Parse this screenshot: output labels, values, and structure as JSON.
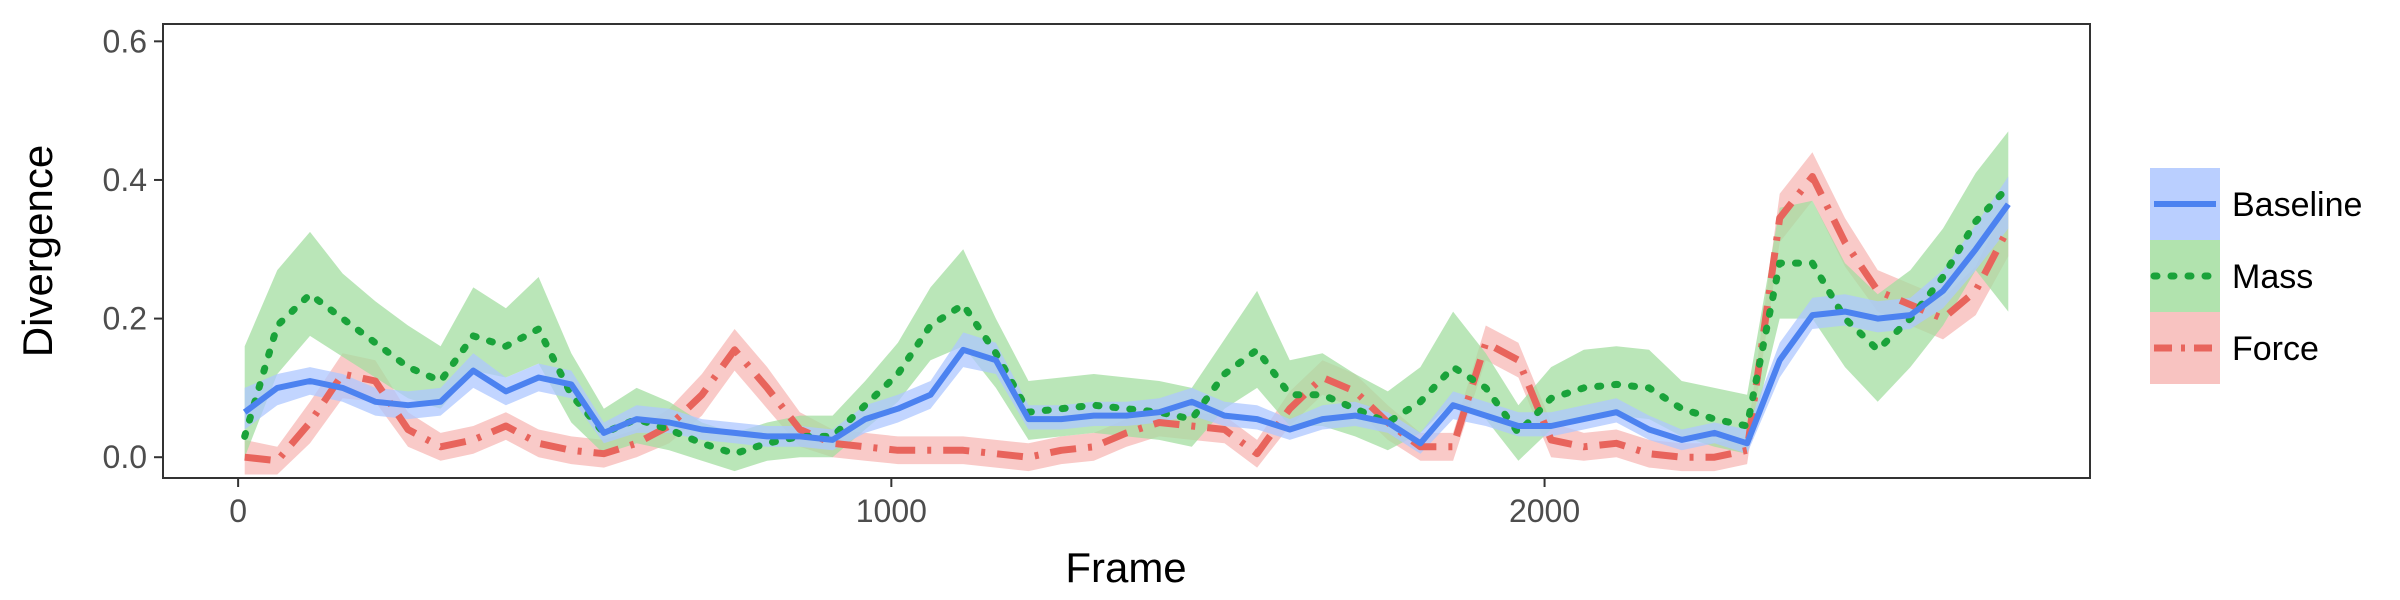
{
  "chart_data": {
    "type": "line",
    "xlabel": "Frame",
    "ylabel": "Divergence",
    "xlim": [
      -115,
      2835
    ],
    "ylim": [
      -0.03,
      0.625
    ],
    "x_ticks": [
      0,
      1000,
      2000
    ],
    "y_ticks": [
      0.0,
      0.2,
      0.4,
      0.6
    ],
    "x_tick_labels": [
      "0",
      "1000",
      "2000"
    ],
    "y_tick_labels": [
      "0.0",
      "0.2",
      "0.4",
      "0.6"
    ],
    "grid": false,
    "legend_position": "right",
    "x": [
      10,
      60,
      110,
      160,
      210,
      260,
      310,
      360,
      410,
      460,
      510,
      560,
      610,
      660,
      710,
      760,
      810,
      860,
      910,
      960,
      1010,
      1060,
      1110,
      1160,
      1210,
      1260,
      1310,
      1360,
      1410,
      1460,
      1510,
      1560,
      1610,
      1660,
      1710,
      1760,
      1810,
      1860,
      1910,
      1960,
      2010,
      2060,
      2110,
      2160,
      2210,
      2260,
      2310,
      2360,
      2410,
      2460,
      2510,
      2560,
      2610,
      2660,
      2710
    ],
    "series": [
      {
        "name": "Baseline",
        "color": "#4c82f0",
        "fill": "#aec7ff",
        "line_style": "solid",
        "values": [
          0.065,
          0.1,
          0.11,
          0.1,
          0.08,
          0.075,
          0.08,
          0.125,
          0.095,
          0.115,
          0.105,
          0.035,
          0.055,
          0.05,
          0.04,
          0.035,
          0.03,
          0.03,
          0.025,
          0.055,
          0.07,
          0.09,
          0.155,
          0.14,
          0.055,
          0.055,
          0.06,
          0.06,
          0.065,
          0.08,
          0.06,
          0.055,
          0.04,
          0.055,
          0.06,
          0.05,
          0.02,
          0.075,
          0.06,
          0.045,
          0.045,
          0.055,
          0.065,
          0.04,
          0.025,
          0.035,
          0.02,
          0.14,
          0.205,
          0.21,
          0.2,
          0.205,
          0.24,
          0.3,
          0.365
        ],
        "lower": [
          0.04,
          0.075,
          0.09,
          0.08,
          0.06,
          0.055,
          0.06,
          0.1,
          0.075,
          0.095,
          0.085,
          0.02,
          0.035,
          0.035,
          0.025,
          0.02,
          0.015,
          0.015,
          0.01,
          0.035,
          0.05,
          0.07,
          0.13,
          0.12,
          0.04,
          0.04,
          0.045,
          0.045,
          0.05,
          0.06,
          0.045,
          0.04,
          0.025,
          0.04,
          0.045,
          0.035,
          0.005,
          0.055,
          0.045,
          0.03,
          0.03,
          0.04,
          0.05,
          0.025,
          0.01,
          0.02,
          0.005,
          0.115,
          0.185,
          0.19,
          0.18,
          0.185,
          0.215,
          0.27,
          0.33
        ],
        "upper": [
          0.1,
          0.12,
          0.13,
          0.12,
          0.1,
          0.095,
          0.1,
          0.15,
          0.115,
          0.135,
          0.125,
          0.05,
          0.075,
          0.07,
          0.055,
          0.05,
          0.045,
          0.045,
          0.04,
          0.075,
          0.09,
          0.11,
          0.18,
          0.165,
          0.075,
          0.075,
          0.08,
          0.08,
          0.085,
          0.1,
          0.08,
          0.075,
          0.055,
          0.075,
          0.08,
          0.065,
          0.035,
          0.095,
          0.08,
          0.065,
          0.065,
          0.075,
          0.085,
          0.06,
          0.04,
          0.05,
          0.04,
          0.165,
          0.23,
          0.235,
          0.225,
          0.23,
          0.27,
          0.335,
          0.405
        ]
      },
      {
        "name": "Mass",
        "color": "#1aa33a",
        "fill": "#a3dea0",
        "line_style": "dotted",
        "values": [
          0.03,
          0.19,
          0.235,
          0.2,
          0.165,
          0.13,
          0.11,
          0.175,
          0.16,
          0.185,
          0.09,
          0.035,
          0.055,
          0.04,
          0.02,
          0.005,
          0.02,
          0.03,
          0.03,
          0.075,
          0.12,
          0.19,
          0.22,
          0.15,
          0.065,
          0.07,
          0.075,
          0.07,
          0.065,
          0.055,
          0.12,
          0.155,
          0.09,
          0.09,
          0.07,
          0.05,
          0.08,
          0.13,
          0.1,
          0.035,
          0.085,
          0.1,
          0.105,
          0.1,
          0.07,
          0.055,
          0.045,
          0.28,
          0.28,
          0.2,
          0.155,
          0.2,
          0.26,
          0.34,
          0.39
        ],
        "lower": [
          0.0,
          0.12,
          0.175,
          0.145,
          0.115,
          0.085,
          0.07,
          0.125,
          0.115,
          0.135,
          0.05,
          0.005,
          0.02,
          0.01,
          -0.005,
          -0.02,
          -0.005,
          0.0,
          0.0,
          0.04,
          0.08,
          0.14,
          0.16,
          0.1,
          0.025,
          0.03,
          0.035,
          0.03,
          0.025,
          0.015,
          0.07,
          0.1,
          0.045,
          0.045,
          0.03,
          0.01,
          0.035,
          0.08,
          0.055,
          -0.005,
          0.04,
          0.055,
          0.06,
          0.055,
          0.03,
          0.015,
          0.005,
          0.2,
          0.2,
          0.13,
          0.08,
          0.13,
          0.19,
          0.27,
          0.21
        ],
        "upper": [
          0.16,
          0.27,
          0.325,
          0.265,
          0.225,
          0.19,
          0.16,
          0.245,
          0.215,
          0.26,
          0.15,
          0.07,
          0.1,
          0.08,
          0.05,
          0.035,
          0.05,
          0.06,
          0.06,
          0.11,
          0.165,
          0.245,
          0.3,
          0.2,
          0.11,
          0.115,
          0.12,
          0.115,
          0.11,
          0.1,
          0.17,
          0.24,
          0.14,
          0.15,
          0.12,
          0.095,
          0.13,
          0.21,
          0.15,
          0.075,
          0.13,
          0.155,
          0.16,
          0.155,
          0.11,
          0.1,
          0.09,
          0.36,
          0.37,
          0.28,
          0.235,
          0.27,
          0.33,
          0.41,
          0.47
        ]
      },
      {
        "name": "Force",
        "color": "#e8645c",
        "fill": "#f7b8b6",
        "line_style": "dashdot",
        "values": [
          0.0,
          -0.005,
          0.05,
          0.12,
          0.11,
          0.04,
          0.015,
          0.025,
          0.045,
          0.02,
          0.01,
          0.005,
          0.02,
          0.045,
          0.09,
          0.155,
          0.1,
          0.04,
          0.02,
          0.015,
          0.01,
          0.01,
          0.01,
          0.005,
          0.0,
          0.01,
          0.015,
          0.035,
          0.05,
          0.045,
          0.04,
          0.005,
          0.07,
          0.115,
          0.095,
          0.05,
          0.015,
          0.015,
          0.165,
          0.14,
          0.025,
          0.015,
          0.02,
          0.005,
          0.0,
          0.0,
          0.01,
          0.345,
          0.405,
          0.31,
          0.24,
          0.22,
          0.2,
          0.24,
          0.33
        ],
        "lower": [
          -0.025,
          -0.025,
          0.02,
          0.085,
          0.08,
          0.015,
          -0.005,
          0.005,
          0.025,
          0.0,
          -0.01,
          -0.015,
          0.0,
          0.02,
          0.06,
          0.125,
          0.07,
          0.015,
          0.0,
          -0.005,
          -0.01,
          -0.01,
          -0.01,
          -0.015,
          -0.02,
          -0.01,
          -0.005,
          0.015,
          0.03,
          0.025,
          0.02,
          -0.015,
          0.045,
          0.09,
          0.07,
          0.025,
          -0.005,
          -0.005,
          0.14,
          0.115,
          0.0,
          -0.005,
          0.0,
          -0.015,
          -0.02,
          -0.02,
          -0.01,
          0.31,
          0.37,
          0.275,
          0.21,
          0.19,
          0.17,
          0.205,
          0.29
        ],
        "upper": [
          0.025,
          0.015,
          0.08,
          0.15,
          0.14,
          0.065,
          0.035,
          0.045,
          0.065,
          0.04,
          0.03,
          0.025,
          0.04,
          0.07,
          0.12,
          0.185,
          0.13,
          0.065,
          0.04,
          0.035,
          0.03,
          0.03,
          0.03,
          0.025,
          0.02,
          0.03,
          0.035,
          0.055,
          0.07,
          0.065,
          0.06,
          0.025,
          0.095,
          0.14,
          0.12,
          0.075,
          0.035,
          0.035,
          0.19,
          0.165,
          0.05,
          0.035,
          0.04,
          0.025,
          0.02,
          0.02,
          0.03,
          0.38,
          0.44,
          0.345,
          0.27,
          0.25,
          0.23,
          0.275,
          0.37
        ]
      }
    ]
  }
}
